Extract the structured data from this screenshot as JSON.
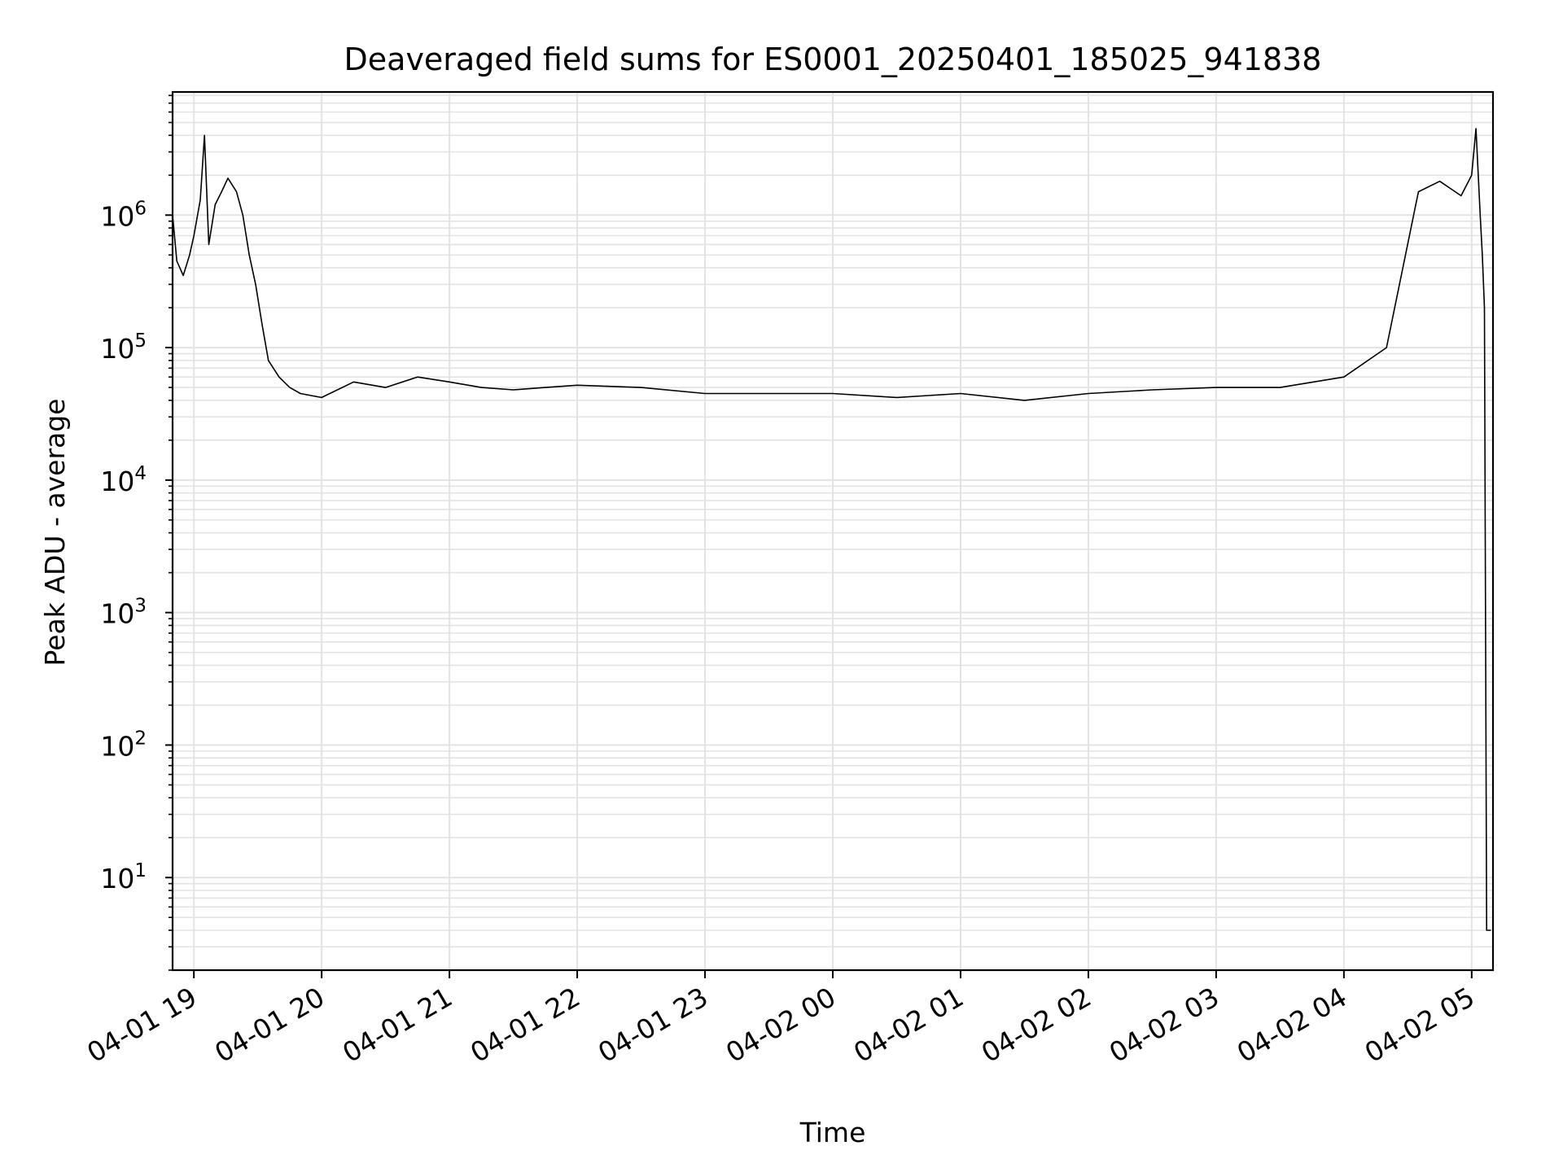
{
  "chart_data": {
    "type": "line",
    "title": "Deaveraged field sums for ES0001_20250401_185025_941838",
    "xlabel": "Time",
    "ylabel": "Peak ADU - average",
    "yscale": "log",
    "ylim": [
      2,
      8500000
    ],
    "xlim": [
      "2025-04-01 18:50",
      "2025-04-02 05:10"
    ],
    "x_ticks": [
      "04-01 19",
      "04-01 20",
      "04-01 21",
      "04-01 22",
      "04-01 23",
      "04-02 00",
      "04-02 01",
      "04-02 02",
      "04-02 03",
      "04-02 04",
      "04-02 05"
    ],
    "y_ticks": [
      {
        "value": 10,
        "base": "10",
        "exp": "1"
      },
      {
        "value": 100,
        "base": "10",
        "exp": "2"
      },
      {
        "value": 1000,
        "base": "10",
        "exp": "3"
      },
      {
        "value": 10000,
        "base": "10",
        "exp": "4"
      },
      {
        "value": 100000,
        "base": "10",
        "exp": "5"
      },
      {
        "value": 1000000,
        "base": "10",
        "exp": "6"
      }
    ],
    "grid": true,
    "line_color": "#000000",
    "series": [
      {
        "x": [
          "2025-04-01 18:50",
          "2025-04-01 18:52",
          "2025-04-01 18:55",
          "2025-04-01 18:58",
          "2025-04-01 19:00",
          "2025-04-01 19:03",
          "2025-04-01 19:05",
          "2025-04-01 19:07",
          "2025-04-01 19:10",
          "2025-04-01 19:13",
          "2025-04-01 19:16",
          "2025-04-01 19:20",
          "2025-04-01 19:23",
          "2025-04-01 19:26",
          "2025-04-01 19:29",
          "2025-04-01 19:32",
          "2025-04-01 19:35",
          "2025-04-01 19:40",
          "2025-04-01 19:45",
          "2025-04-01 19:50",
          "2025-04-01 20:00",
          "2025-04-01 20:15",
          "2025-04-01 20:30",
          "2025-04-01 20:45",
          "2025-04-01 21:00",
          "2025-04-01 21:15",
          "2025-04-01 21:30",
          "2025-04-01 21:45",
          "2025-04-01 22:00",
          "2025-04-01 22:30",
          "2025-04-01 23:00",
          "2025-04-01 23:30",
          "2025-04-02 00:00",
          "2025-04-02 00:30",
          "2025-04-02 01:00",
          "2025-04-02 01:30",
          "2025-04-02 02:00",
          "2025-04-02 02:30",
          "2025-04-02 03:00",
          "2025-04-02 03:30",
          "2025-04-02 04:00",
          "2025-04-02 04:20",
          "2025-04-02 04:35",
          "2025-04-02 04:45",
          "2025-04-02 04:55",
          "2025-04-02 05:00",
          "2025-04-02 05:02",
          "2025-04-02 05:04",
          "2025-04-02 05:05",
          "2025-04-02 05:06",
          "2025-04-02 05:07",
          "2025-04-02 05:08",
          "2025-04-02 05:09"
        ],
        "y": [
          1000000,
          450000,
          350000,
          500000,
          700000,
          1300000,
          4000000,
          600000,
          1200000,
          1500000,
          1900000,
          1500000,
          1000000,
          500000,
          300000,
          150000,
          80000,
          60000,
          50000,
          45000,
          42000,
          55000,
          50000,
          60000,
          55000,
          50000,
          48000,
          50000,
          52000,
          50000,
          45000,
          45000,
          45000,
          42000,
          45000,
          40000,
          45000,
          48000,
          50000,
          50000,
          60000,
          100000,
          1500000,
          1800000,
          1400000,
          2000000,
          4500000,
          1000000,
          500000,
          200000,
          4,
          4,
          4
        ]
      }
    ]
  }
}
